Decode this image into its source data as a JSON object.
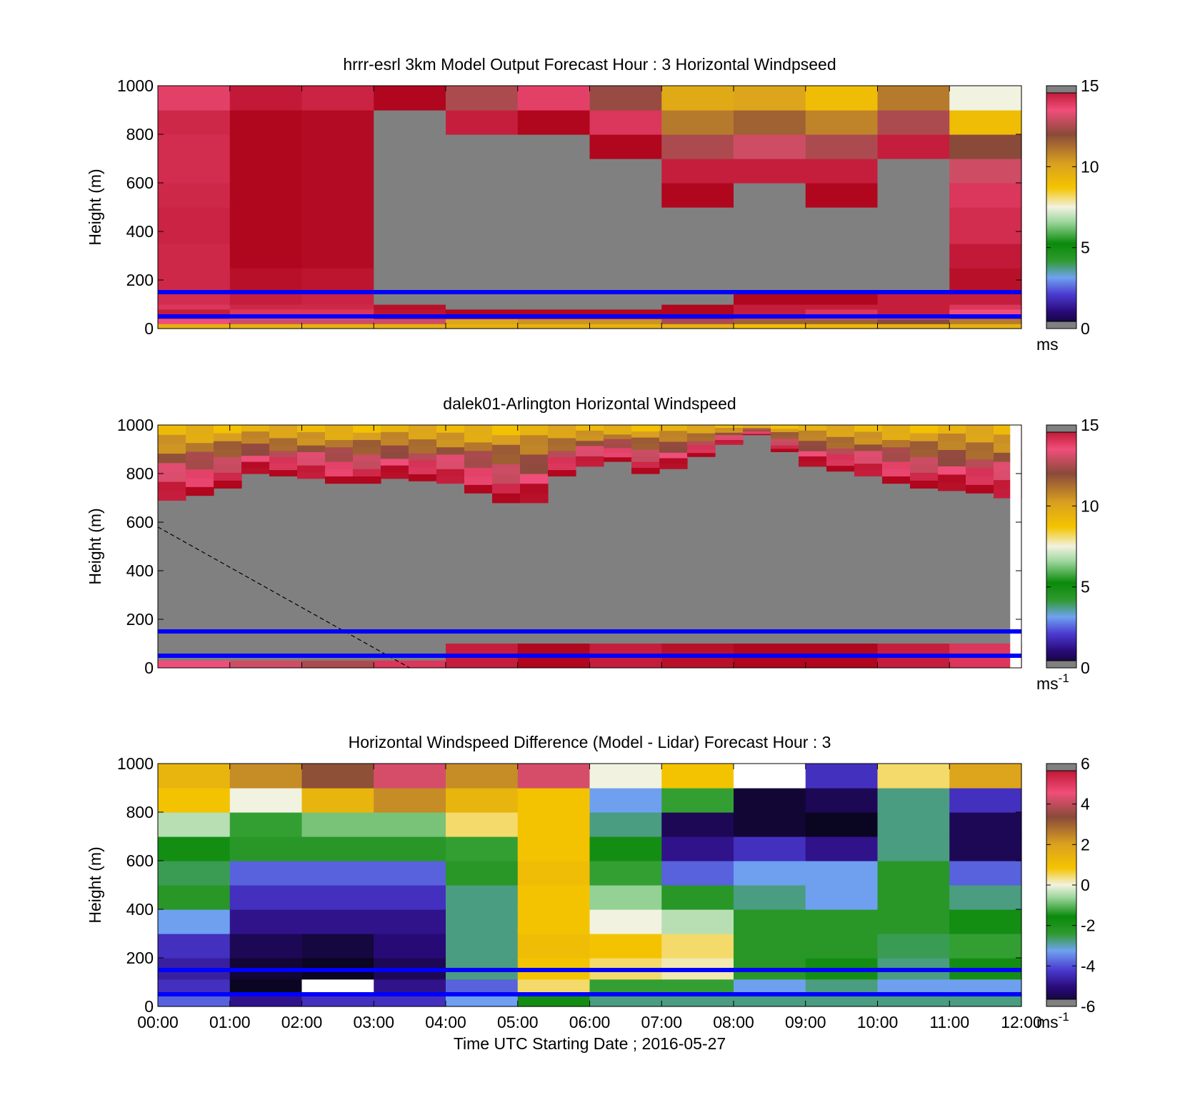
{
  "chart_data": [
    {
      "type": "heatmap",
      "title": "hrrr-esrl 3km Model Output   Forecast Hour : 3 Horizontal Windpseed",
      "ylabel": "Height (m)",
      "xlabel": "",
      "ylim": [
        0,
        1000
      ],
      "xlim": [
        "00:00",
        "12:00"
      ],
      "y_ticks": [
        "0",
        "200",
        "400",
        "600",
        "800",
        "1000"
      ],
      "colorbar": {
        "min": 0,
        "max": 15,
        "ticks": [
          "0",
          "5",
          "10",
          "15"
        ],
        "unit": "ms"
      },
      "reference_lines_m": [
        150,
        50
      ],
      "reference_line_color": "#0000ff",
      "missing_color": "#808080",
      "time_columns": [
        "00:00",
        "01:00",
        "02:00",
        "03:00",
        "04:00",
        "05:00",
        "06:00",
        "07:00",
        "08:00",
        "09:00",
        "10:00",
        "11:00"
      ],
      "height_levels_m": [
        20,
        40,
        60,
        80,
        100,
        150,
        250,
        350,
        500,
        600,
        700,
        800,
        900,
        1000
      ],
      "windspeed_ms": [
        [
          9.5,
          13.5,
          14.0,
          14.5,
          14.0,
          14.2,
          14.3,
          14.3,
          14.4,
          14.3,
          14.2,
          14.2,
          14.3,
          13.8
        ],
        [
          9.5,
          13.0,
          13.5,
          14.0,
          14.3,
          14.5,
          14.8,
          15.0,
          15.0,
          15.0,
          15.0,
          15.0,
          15.0,
          14.6
        ],
        [
          9.5,
          13.0,
          13.5,
          14.0,
          14.3,
          14.4,
          14.7,
          14.9,
          14.9,
          14.9,
          14.9,
          14.9,
          14.9,
          14.4
        ],
        [
          9.5,
          13.0,
          14.5,
          14.7,
          14.8,
          null,
          null,
          null,
          null,
          null,
          null,
          null,
          null,
          15.0
        ],
        [
          9.5,
          10.0,
          14.5,
          15.0,
          null,
          null,
          null,
          null,
          null,
          null,
          null,
          null,
          14.5,
          12.5
        ],
        [
          9.5,
          10.5,
          14.5,
          15.0,
          null,
          null,
          null,
          null,
          null,
          null,
          null,
          null,
          15.0,
          13.8
        ],
        [
          9.5,
          10.5,
          14.5,
          15.0,
          null,
          null,
          null,
          null,
          null,
          null,
          null,
          15.0,
          14.0,
          12.2
        ],
        [
          9.5,
          12.5,
          14.5,
          15.0,
          15.0,
          null,
          null,
          null,
          null,
          15.0,
          14.5,
          12.5,
          11.0,
          9.8
        ],
        [
          9.0,
          11.5,
          14.0,
          14.5,
          14.5,
          15.0,
          null,
          null,
          null,
          null,
          14.5,
          13.0,
          11.5,
          10.0
        ],
        [
          9.2,
          11.5,
          13.5,
          14.0,
          14.5,
          15.0,
          null,
          null,
          null,
          15.0,
          14.5,
          12.5,
          10.8,
          9.0
        ],
        [
          9.5,
          12.0,
          13.5,
          14.5,
          14.5,
          14.5,
          null,
          null,
          null,
          null,
          null,
          14.5,
          12.5,
          11.0
        ],
        [
          9.5,
          11.0,
          12.5,
          13.5,
          14.0,
          14.5,
          14.8,
          14.6,
          14.2,
          14.0,
          13.0,
          12.0,
          9.0,
          7.5
        ]
      ]
    },
    {
      "type": "heatmap",
      "title": "dalek01-Arlington  Horizontal Windspeed",
      "ylabel": "Height (m)",
      "xlabel": "",
      "ylim": [
        0,
        1000
      ],
      "xlim": [
        "00:00",
        "12:00"
      ],
      "y_ticks": [
        "0",
        "200",
        "400",
        "600",
        "800",
        "1000"
      ],
      "colorbar": {
        "min": 0,
        "max": 15,
        "ticks": [
          "0",
          "5",
          "10",
          "15"
        ],
        "unit": "ms-1"
      },
      "reference_lines_m": [
        150,
        50
      ],
      "reference_line_color": "#0000ff",
      "missing_color": "#808080",
      "dashed_line": {
        "from": [
          "00:00",
          580
        ],
        "to": [
          "03:30",
          0
        ]
      },
      "top_of_valid_data_m": [
        690,
        710,
        740,
        800,
        790,
        780,
        760,
        760,
        780,
        770,
        760,
        720,
        680,
        680,
        790,
        830,
        850,
        800,
        820,
        870,
        920,
        960,
        890,
        830,
        810,
        790,
        760,
        740,
        730,
        720,
        700
      ],
      "lower_layer_speed_ms": [
        13.5,
        13.0,
        12.5,
        14.0,
        14.5,
        15.0,
        14.5,
        14.8,
        15.0,
        15.0,
        14.5,
        14.0
      ]
    },
    {
      "type": "heatmap",
      "title": "Horizontal Windspeed Difference (Model - Lidar) Forecast Hour : 3",
      "ylabel": "Height (m)",
      "xlabel": "Time UTC  Starting Date ; 2016-05-27",
      "ylim": [
        0,
        1000
      ],
      "x_ticks": [
        "00:00",
        "01:00",
        "02:00",
        "03:00",
        "04:00",
        "05:00",
        "06:00",
        "07:00",
        "08:00",
        "09:00",
        "10:00",
        "11:00",
        "12:00"
      ],
      "y_ticks": [
        "0",
        "200",
        "400",
        "600",
        "800",
        "1000"
      ],
      "colorbar": {
        "min": -6,
        "max": 6,
        "ticks": [
          "-6",
          "-4",
          "-2",
          "0",
          "2",
          "4",
          "6"
        ],
        "unit": "ms-1"
      },
      "reference_lines_m": [
        150,
        50
      ],
      "reference_line_color": "#0000ff",
      "height_levels_m": [
        25,
        75,
        150,
        250,
        350,
        450,
        550,
        650,
        750,
        850,
        950
      ],
      "difference_ms": [
        [
          -4.0,
          -4.5,
          -4.8,
          -4.5,
          -3.5,
          -2.5,
          -2.8,
          -2.0,
          -0.5,
          1.0,
          1.5
        ],
        [
          -5.0,
          -6.0,
          -5.8,
          -5.5,
          -5.0,
          -4.5,
          -4.0,
          -2.5,
          -1.5,
          0.0,
          2.5
        ],
        [
          -4.5,
          null,
          -6.0,
          -5.7,
          -5.0,
          -4.5,
          -4.0,
          -2.5,
          -1.0,
          1.5,
          3.5
        ],
        [
          -4.5,
          -5.0,
          -5.5,
          -5.2,
          -5.0,
          -4.5,
          -4.0,
          -2.5,
          -1.0,
          2.5,
          4.5
        ],
        [
          -3.5,
          -4.0,
          -3.0,
          -3.0,
          -3.0,
          -3.0,
          -2.5,
          -1.5,
          0.5,
          1.5,
          2.5
        ],
        [
          -2.0,
          0.5,
          1.0,
          1.2,
          1.0,
          1.0,
          1.2,
          1.0,
          1.0,
          1.0,
          4.5
        ],
        [
          -3.0,
          -1.5,
          0.5,
          1.0,
          0.0,
          -0.8,
          -1.5,
          -2.0,
          -3.0,
          -3.5,
          0.0
        ],
        [
          -3.0,
          -1.5,
          0.2,
          0.5,
          -0.5,
          -2.5,
          -4.0,
          -5.0,
          -5.5,
          -1.5,
          1.0
        ],
        [
          -3.0,
          -3.5,
          -2.5,
          -2.5,
          -2.5,
          -3.0,
          -3.5,
          -4.5,
          -5.8,
          -5.8,
          null
        ],
        [
          -3.0,
          -3.0,
          -2.0,
          -2.5,
          -2.5,
          -3.5,
          -3.5,
          -5.0,
          -6.0,
          -5.5,
          -4.5
        ],
        [
          -3.0,
          -3.5,
          -3.0,
          -2.8,
          -2.5,
          -2.5,
          -2.5,
          -3.0,
          -3.0,
          -3.0,
          0.5
        ],
        [
          -3.0,
          -3.5,
          -2.0,
          -1.5,
          -2.0,
          -3.0,
          -4.0,
          -5.5,
          -5.5,
          -4.5,
          2.0
        ]
      ]
    }
  ]
}
